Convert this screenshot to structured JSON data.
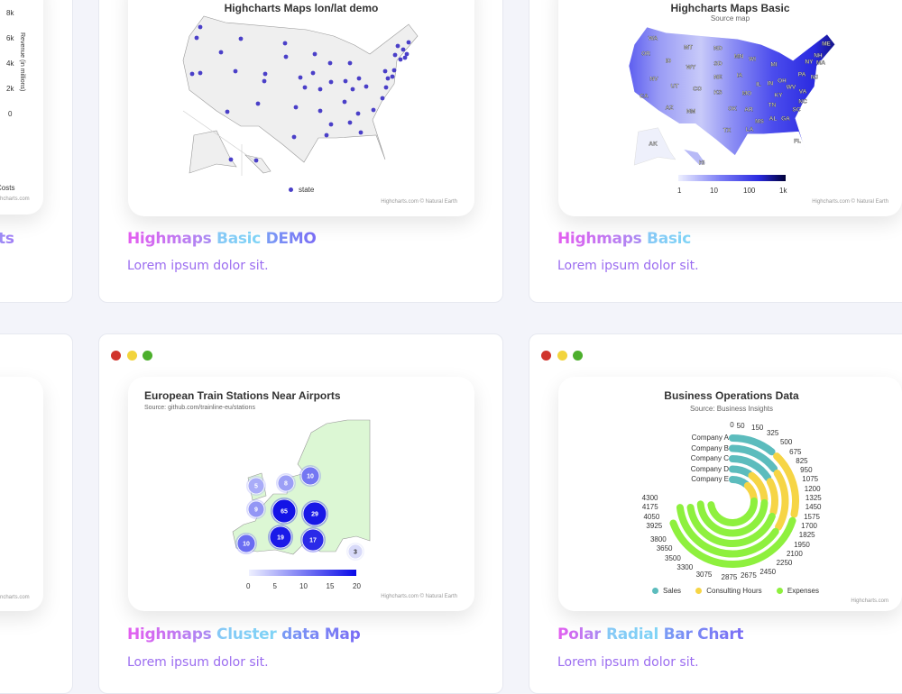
{
  "colors": {
    "accent_pink": "#e45cf0",
    "accent_sky": "#7fd4f6",
    "accent_violet": "#6f6cf5",
    "desc": "#9b6cf0",
    "sales": "#5cbcbd",
    "consulting": "#f6d545",
    "expenses": "#8ef03e",
    "window_red": "#d0342c",
    "window_yellow": "#f2d43c",
    "window_green": "#4caf2c"
  },
  "cards": [
    {
      "partial_left": {
        "y_ticks": [
          "8k",
          "6k",
          "4k",
          "2k",
          "0"
        ],
        "axis_label": "Revenue (in millions)",
        "legend_tail": "Costs",
        "credit": "hcharts.com",
        "title_tail": "ts"
      }
    },
    {
      "chart_title": "Highcharts Maps lon/lat demo",
      "legend": "state",
      "credit": "Highcharts.com © Natural Earth",
      "title_words": [
        "Highmaps",
        "Basic",
        "DEMO"
      ],
      "description": "Lorem ipsum dolor sit."
    },
    {
      "chart_title": "Highcharts Maps Basic",
      "chart_subtitle": "Source map",
      "colorbar_labels": [
        "1",
        "10",
        "100",
        "1k"
      ],
      "credit": "Highcharts.com © Natural Earth",
      "title_words": [
        "Highmaps",
        "Basic"
      ],
      "description": "Lorem ipsum dolor sit.",
      "states": [
        "WA",
        "OR",
        "CA",
        "NV",
        "ID",
        "MT",
        "WY",
        "UT",
        "CO",
        "AZ",
        "NM",
        "ND",
        "SD",
        "NE",
        "KS",
        "OK",
        "TX",
        "MN",
        "IA",
        "MO",
        "AR",
        "LA",
        "WI",
        "IL",
        "MI",
        "IN",
        "OH",
        "KY",
        "TN",
        "MS",
        "AL",
        "GA",
        "FL",
        "SC",
        "NC",
        "VA",
        "WV",
        "PA",
        "NY",
        "NJ",
        "NH",
        "MA",
        "ME",
        "AK",
        "HI"
      ]
    },
    {
      "partial_left": {
        "credit": "ncharts.com"
      }
    },
    {
      "chart_title": "European Train Stations Near Airports",
      "chart_subtitle": "Source: github.com/trainline-eu/stations",
      "clusters": [
        "5",
        "8",
        "10",
        "9",
        "65",
        "29",
        "10",
        "19",
        "17",
        "3"
      ],
      "colorbar_labels": [
        "0",
        "5",
        "10",
        "15",
        "20"
      ],
      "credit": "Highcharts.com © Natural Earth",
      "title_words": [
        "Highmaps",
        "Cluster",
        "data Map"
      ],
      "description": "Lorem ipsum dolor sit."
    },
    {
      "title_words": [
        "Polar",
        "Radial",
        "Bar Chart"
      ],
      "description": "Lorem ipsum dolor sit.",
      "credit": "Highcharts.com"
    }
  ],
  "chart_data": {
    "type": "bar",
    "polar": true,
    "stacked": true,
    "title": "Business Operations Data",
    "subtitle": "Source: Business Insights",
    "categories": [
      "Company A",
      "Company B",
      "Company C",
      "Company D",
      "Company E"
    ],
    "axis_ticks": [
      "0",
      "50",
      "150",
      "325",
      "500",
      "675",
      "825",
      "950",
      "1075",
      "1200",
      "1325",
      "1450",
      "1575",
      "1700",
      "1825",
      "1950",
      "2100",
      "2250",
      "2450",
      "2675",
      "2875",
      "3075",
      "3300",
      "3500",
      "3650",
      "3800",
      "3925",
      "4050",
      "4175",
      "4300"
    ],
    "series": [
      {
        "name": "Sales",
        "values": [
          500,
          725,
          800,
          400,
          500
        ]
      },
      {
        "name": "Consulting Hours",
        "values": [
          1100,
          1200,
          850,
          950,
          800
        ]
      },
      {
        "name": "Expenses",
        "values": [
          2350,
          2250,
          2500,
          2850,
          2825
        ]
      }
    ],
    "legend": "bottom"
  }
}
